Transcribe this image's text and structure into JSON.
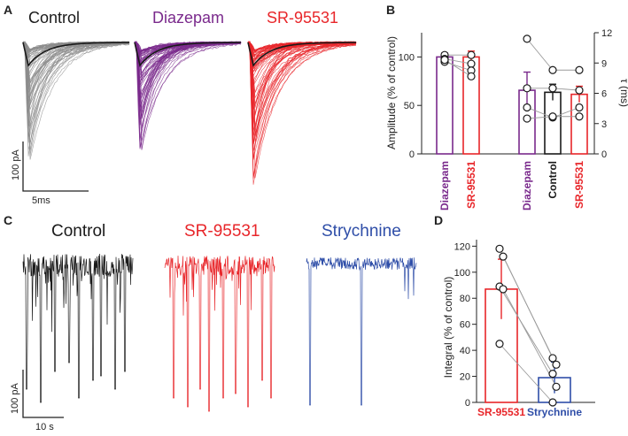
{
  "colors": {
    "control_trace": "#8c8c8c",
    "control": "#1a1a1a",
    "diazepam": "#7a2a8c",
    "sr95531": "#e8262a",
    "strychnine": "#2f4ea8",
    "points": "#1a1a1a",
    "connector": "#9a9a9a"
  },
  "panels": {
    "a": "A",
    "b": "B",
    "c": "C",
    "d": "D"
  },
  "panel_a": {
    "titles": {
      "control": "Control",
      "diazepam": "Diazepam",
      "sr95531": "SR-95531"
    },
    "scalebar": {
      "y_label": "100 pA",
      "x_label": "5ms"
    }
  },
  "panel_c": {
    "titles": {
      "control": "Control",
      "sr95531": "SR-95531",
      "strychnine": "Strychnine"
    },
    "scalebar": {
      "y_label": "100 pA",
      "x_label": "10 s"
    }
  },
  "chart_data": [
    {
      "id": "B",
      "type": "bar",
      "ylabel_left": "Amplitude (% of control)",
      "ylim_left": [
        0,
        125
      ],
      "yticks_left": [
        0,
        50,
        100
      ],
      "ylabel_right": "τ (ms)",
      "ylim_right": [
        0,
        12
      ],
      "yticks_right": [
        0,
        3,
        6,
        9,
        12
      ],
      "groups": [
        {
          "name": "Amplitude",
          "axis": "left",
          "bars": [
            {
              "label": "Diazepam",
              "value": 100,
              "error": 4,
              "color_key": "diazepam",
              "points": [
                102,
                98,
                95,
                97
              ]
            },
            {
              "label": "SR-95531",
              "value": 100,
              "error": 6,
              "color_key": "sr95531",
              "points": [
                102,
                93,
                86,
                80
              ]
            }
          ],
          "paired": true
        },
        {
          "name": "τ",
          "axis": "right",
          "bars": [
            {
              "label": "Diazepam",
              "value": 6.3,
              "error": 1.8,
              "color_key": "diazepam",
              "points": [
                11.4,
                6.5,
                4.6,
                3.5
              ]
            },
            {
              "label": "Control",
              "value": 6.1,
              "error": 0.8,
              "color_key": "control",
              "points": [
                8.3,
                6.5,
                3.6,
                3.7
              ]
            },
            {
              "label": "SR-95531",
              "value": 5.9,
              "error": 0.8,
              "color_key": "sr95531",
              "points": [
                8.3,
                6.3,
                4.6,
                3.7
              ]
            }
          ],
          "paired": true
        }
      ]
    },
    {
      "id": "D",
      "type": "bar",
      "ylabel": "Integral  (% of control)",
      "ylim": [
        0,
        125
      ],
      "yticks": [
        0,
        20,
        40,
        60,
        80,
        100,
        120
      ],
      "bars": [
        {
          "label": "SR-95531",
          "value": 87,
          "error": 23,
          "color_key": "sr95531",
          "points": [
            118,
            112,
            89,
            87,
            45
          ]
        },
        {
          "label": "Strychnine",
          "value": 19,
          "error": 12,
          "color_key": "strychnine",
          "points": [
            34,
            29,
            22,
            12,
            0
          ]
        }
      ],
      "paired": true
    }
  ]
}
